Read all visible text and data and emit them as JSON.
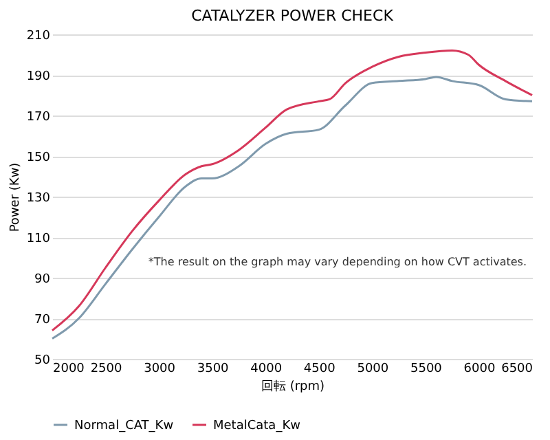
{
  "chart_data": {
    "type": "line",
    "title": "CATALYZER POWER CHECK",
    "xlabel": "回転 (rpm)",
    "ylabel": "Power (Kw)",
    "xlim": [
      2000,
      6500
    ],
    "xticks": [
      2000,
      2500,
      3000,
      3500,
      4000,
      4500,
      5000,
      5500,
      6000,
      6500
    ],
    "ylim": [
      50,
      210
    ],
    "yticks": [
      50,
      70,
      90,
      110,
      130,
      150,
      170,
      190,
      210
    ],
    "grid": "y",
    "legend": "bottom",
    "marker": "none",
    "line_style": "solid",
    "annotations": [
      {
        "text": "*The result on the graph may vary depending on how CVT activates."
      }
    ],
    "series": [
      {
        "name": "Normal_CAT_Kw",
        "color": "#7f9aad",
        "x": [
          2000,
          2250,
          2500,
          2750,
          3000,
          3250,
          3400,
          3500,
          3750,
          4000,
          4200,
          4500,
          4750,
          5000,
          5250,
          5500,
          5600,
          5750,
          6000,
          6250,
          6500
        ],
        "values": [
          60,
          70,
          87,
          104,
          120,
          135,
          139,
          139,
          145,
          156,
          161,
          163,
          175,
          186,
          187,
          188,
          189,
          187,
          185,
          178,
          177
        ]
      },
      {
        "name": "MetalCata_Kw",
        "color": "#d6385a",
        "x": [
          2000,
          2250,
          2500,
          2750,
          3000,
          3250,
          3400,
          3500,
          3750,
          4000,
          4200,
          4500,
          4600,
          4750,
          5000,
          5250,
          5500,
          5750,
          5900,
          6000,
          6250,
          6500
        ],
        "values": [
          64,
          76,
          95,
          113,
          128,
          141,
          145,
          146,
          153,
          164,
          173,
          177,
          178,
          186,
          194,
          199,
          201,
          202,
          200,
          195,
          187,
          180
        ]
      }
    ]
  }
}
